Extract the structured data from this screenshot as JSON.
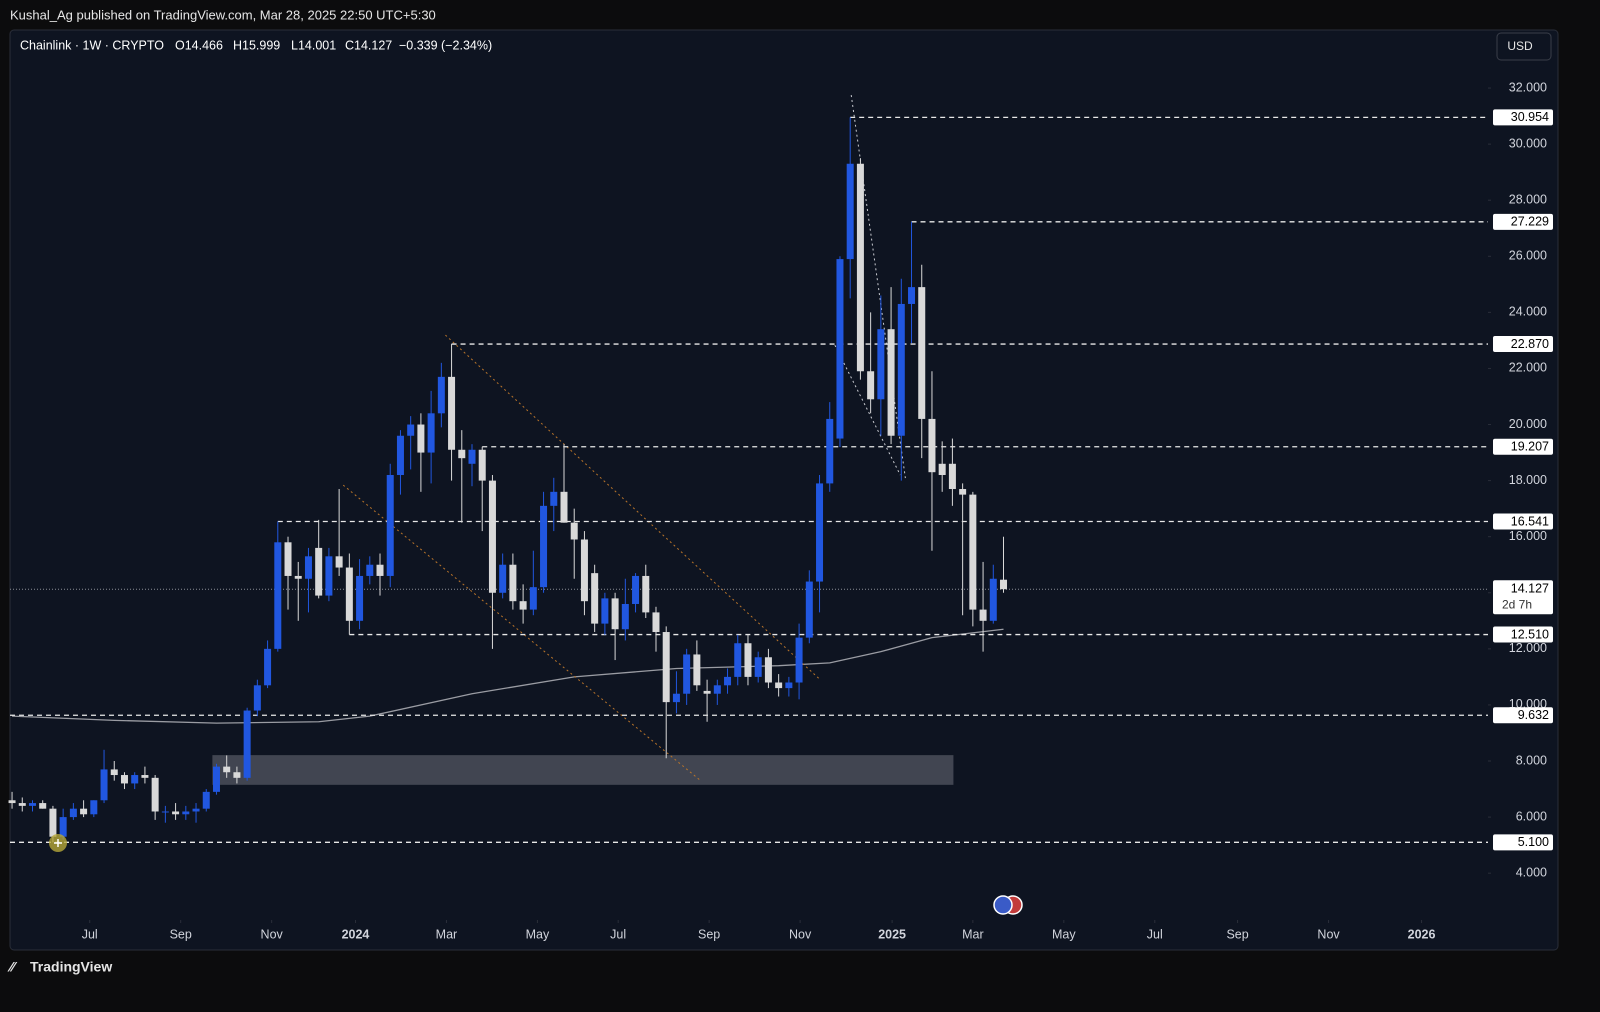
{
  "header": {
    "publisher": "Kushal_Ag published on TradingView.com, Mar 28, 2025 22:50 UTC+5:30",
    "symbol": "Chainlink · 1W · CRYPTO",
    "open": "O14.466",
    "high": "H15.999",
    "low": "L14.001",
    "close": "C14.127",
    "change": "−0.339 (−2.34%)",
    "currency": "USD",
    "footer": "TradingView"
  },
  "chart_data": {
    "type": "candlestick",
    "up_color": "#2157e0",
    "down_color": "#d9d9d9",
    "x": [
      0,
      1,
      2,
      3,
      4,
      5,
      6,
      7,
      8,
      9,
      10,
      11,
      12,
      13,
      14,
      15,
      16,
      17,
      18,
      19,
      20,
      21,
      22,
      23,
      24,
      25,
      26,
      27,
      28,
      29,
      30,
      31,
      32,
      33,
      34,
      35,
      36,
      37,
      38,
      39,
      40,
      41,
      42,
      43,
      44,
      45,
      46,
      47,
      48,
      49,
      50,
      51,
      52,
      53,
      54,
      55,
      56,
      57,
      58,
      59,
      60,
      61,
      62,
      63,
      64,
      65,
      66,
      67,
      68,
      69,
      70,
      71,
      72,
      73,
      74,
      75,
      76,
      77,
      78,
      79,
      80,
      81,
      82,
      83,
      84,
      85,
      86,
      87,
      88,
      89,
      90,
      91,
      92,
      93,
      94,
      95,
      96,
      97
    ],
    "open": [
      6.6,
      6.5,
      6.4,
      6.5,
      6.3,
      5.3,
      6.0,
      6.3,
      6.1,
      6.6,
      7.7,
      7.5,
      7.2,
      7.5,
      7.4,
      6.2,
      6.2,
      6.1,
      6.2,
      6.3,
      6.9,
      7.8,
      7.6,
      7.4,
      9.8,
      10.7,
      12.0,
      15.8,
      14.6,
      14.5,
      15.6,
      13.9,
      15.3,
      14.9,
      13.0,
      14.6,
      15.0,
      14.6,
      18.2,
      19.6,
      20.0,
      19.0,
      20.4,
      21.7,
      19.1,
      18.6,
      19.1,
      18.0,
      14.0,
      15.0,
      13.7,
      13.4,
      14.2,
      17.1,
      17.6,
      16.5,
      15.9,
      14.7,
      12.9,
      13.8,
      12.7,
      13.6,
      14.6,
      13.3,
      12.6,
      10.1,
      10.4,
      11.8,
      10.5,
      10.4,
      10.7,
      11.0,
      12.2,
      11.0,
      11.7,
      10.8,
      10.6,
      10.8,
      12.4,
      14.4,
      17.9,
      19.5,
      25.9,
      29.3,
      21.9,
      20.9,
      23.4,
      19.6,
      24.3,
      24.9,
      20.2,
      18.6,
      18.6,
      17.7,
      17.5,
      13.4,
      13.0,
      14.466
    ],
    "high": [
      6.9,
      6.7,
      6.6,
      6.6,
      6.4,
      6.3,
      6.5,
      6.6,
      6.6,
      8.4,
      8.0,
      7.6,
      7.6,
      7.8,
      7.5,
      6.4,
      6.5,
      6.4,
      6.5,
      7.0,
      7.9,
      8.2,
      7.8,
      9.9,
      10.9,
      12.3,
      16.541,
      16.0,
      15.1,
      15.6,
      16.6,
      15.6,
      17.7,
      15.4,
      15.2,
      15.3,
      15.4,
      18.6,
      19.8,
      20.3,
      20.4,
      21.2,
      22.2,
      22.87,
      19.8,
      19.3,
      19.207,
      18.2,
      15.4,
      15.4,
      14.3,
      15.5,
      17.6,
      18.1,
      19.3,
      17.0,
      16.2,
      15.0,
      14.0,
      14.0,
      14.5,
      14.7,
      15.0,
      13.5,
      12.8,
      11.2,
      12.0,
      12.3,
      10.9,
      10.9,
      11.3,
      12.5,
      12.5,
      11.9,
      12.0,
      11.1,
      11.0,
      12.9,
      14.8,
      18.2,
      20.8,
      26.0,
      30.954,
      29.5,
      24.0,
      24.6,
      24.9,
      25.2,
      27.229,
      25.7,
      21.9,
      19.4,
      19.5,
      17.9,
      17.6,
      15.1,
      15.0,
      15.999
    ],
    "low": [
      6.3,
      6.2,
      6.2,
      6.3,
      5.1,
      5.2,
      5.9,
      6.0,
      6.0,
      6.5,
      7.3,
      7.0,
      7.0,
      7.2,
      5.9,
      5.8,
      5.9,
      5.9,
      5.8,
      6.2,
      6.8,
      7.4,
      7.2,
      7.3,
      9.6,
      10.6,
      11.9,
      13.4,
      13.0,
      13.3,
      13.8,
      13.7,
      14.6,
      12.51,
      12.7,
      14.3,
      13.9,
      14.2,
      17.5,
      18.4,
      17.6,
      17.9,
      19.9,
      18.0,
      16.5,
      17.8,
      16.2,
      12.0,
      13.8,
      13.4,
      12.9,
      13.2,
      14.0,
      16.2,
      16.5,
      14.5,
      13.2,
      12.6,
      12.5,
      11.6,
      12.3,
      13.3,
      13.1,
      11.9,
      8.1,
      9.7,
      10.0,
      10.5,
      9.4,
      10.0,
      10.4,
      10.7,
      10.7,
      10.8,
      10.6,
      10.3,
      10.3,
      10.2,
      12.2,
      13.3,
      17.6,
      19.2,
      24.5,
      21.6,
      20.4,
      19.6,
      19.3,
      18.0,
      22.9,
      18.8,
      15.5,
      17.6,
      17.1,
      13.2,
      12.8,
      11.9,
      12.9,
      14.001
    ],
    "close": [
      6.5,
      6.4,
      6.5,
      6.3,
      5.3,
      6.0,
      6.3,
      6.1,
      6.6,
      7.7,
      7.5,
      7.2,
      7.5,
      7.4,
      6.2,
      6.2,
      6.1,
      6.2,
      6.3,
      6.9,
      7.8,
      7.6,
      7.4,
      9.8,
      10.7,
      12.0,
      15.8,
      14.6,
      14.5,
      15.3,
      13.9,
      15.3,
      14.9,
      13.0,
      14.6,
      15.0,
      14.6,
      18.2,
      19.6,
      20.0,
      19.0,
      20.4,
      21.7,
      19.1,
      18.8,
      19.1,
      18.0,
      14.0,
      15.0,
      13.7,
      13.4,
      14.2,
      17.1,
      17.6,
      16.5,
      15.9,
      13.7,
      12.9,
      13.8,
      12.7,
      13.6,
      14.6,
      13.3,
      12.6,
      10.1,
      10.4,
      11.8,
      10.7,
      10.4,
      10.7,
      11.0,
      12.2,
      11.0,
      11.7,
      10.8,
      10.6,
      10.8,
      12.4,
      14.4,
      17.9,
      20.2,
      25.9,
      29.3,
      21.9,
      20.9,
      23.4,
      19.6,
      24.3,
      24.9,
      20.2,
      18.3,
      18.2,
      17.7,
      17.5,
      13.4,
      13.0,
      14.5,
      14.127
    ],
    "xlim": [
      -0.2,
      144.4
    ],
    "xticks": [
      {
        "value": 7.6,
        "label": "Jul"
      },
      {
        "value": 16.5,
        "label": "Sep"
      },
      {
        "value": 25.4,
        "label": "Nov"
      },
      {
        "value": 33.6,
        "label": "2024"
      },
      {
        "value": 42.5,
        "label": "Mar"
      },
      {
        "value": 51.4,
        "label": "May"
      },
      {
        "value": 59.3,
        "label": "Jul"
      },
      {
        "value": 68.2,
        "label": "Sep"
      },
      {
        "value": 77.1,
        "label": "Nov"
      },
      {
        "value": 86.1,
        "label": "2025"
      },
      {
        "value": 94.0,
        "label": "Mar"
      },
      {
        "value": 102.9,
        "label": "May"
      },
      {
        "value": 111.8,
        "label": "Jul"
      },
      {
        "value": 119.9,
        "label": "Sep"
      },
      {
        "value": 128.8,
        "label": "Nov"
      },
      {
        "value": 137.9,
        "label": "2026"
      }
    ],
    "ylim": [
      2.33,
      34.07
    ],
    "yticks": [
      {
        "value": 4,
        "label": "4.000"
      },
      {
        "value": 6,
        "label": "6.000"
      },
      {
        "value": 8,
        "label": "8.000"
      },
      {
        "value": 10,
        "label": "10.000"
      },
      {
        "value": 12,
        "label": "12.000"
      },
      {
        "value": 14,
        "label": "14.000"
      },
      {
        "value": 16,
        "label": "16.000"
      },
      {
        "value": 18,
        "label": "18.000"
      },
      {
        "value": 20,
        "label": "20.000"
      },
      {
        "value": 22,
        "label": "22.000"
      },
      {
        "value": 24,
        "label": "24.000"
      },
      {
        "value": 26,
        "label": "26.000"
      },
      {
        "value": 28,
        "label": "28.000"
      },
      {
        "value": 30,
        "label": "30.000"
      },
      {
        "value": 32,
        "label": "32.000"
      }
    ],
    "levels": [
      {
        "value": 30.954,
        "label": "30.954",
        "start": 82
      },
      {
        "value": 27.229,
        "label": "27.229",
        "start": 88
      },
      {
        "value": 22.87,
        "label": "22.870",
        "start": 43
      },
      {
        "value": 19.207,
        "label": "19.207",
        "start": 46
      },
      {
        "value": 16.541,
        "label": "16.541",
        "start": 26
      },
      {
        "value": 12.51,
        "label": "12.510",
        "start": 33
      },
      {
        "value": 9.632,
        "label": "9.632",
        "start": -0.2
      },
      {
        "value": 5.1,
        "label": "5.100",
        "start": -0.2
      }
    ],
    "last_price": {
      "value": 14.127,
      "label": "14.127",
      "countdown": "2d 7h"
    },
    "ma": {
      "color": "#9a9ca3",
      "x": [
        0,
        10,
        20,
        30,
        35,
        45,
        55,
        65,
        75,
        80,
        85,
        90,
        97
      ],
      "values": [
        9.6,
        9.45,
        9.35,
        9.4,
        9.6,
        10.4,
        11.0,
        11.3,
        11.4,
        11.5,
        11.9,
        12.4,
        12.7
      ]
    },
    "trendlines": [
      {
        "color": "#b8742a",
        "x": [
          32.4,
          67.3
        ],
        "y": [
          17.84,
          7.32
        ]
      },
      {
        "color": "#b8742a",
        "x": [
          42.4,
          79.1
        ],
        "y": [
          23.19,
          10.89
        ]
      },
      {
        "color": "#c9cbd1",
        "x": [
          82.1,
          87.4
        ],
        "y": [
          31.75,
          18.09
        ]
      },
      {
        "color": "#c9cbd1",
        "x": [
          80.5,
          86.9
        ],
        "y": [
          22.83,
          18.2
        ]
      }
    ],
    "zone": {
      "color": "#4a4e59",
      "x": [
        19.6,
        92.1
      ],
      "y": [
        7.15,
        8.21
      ]
    }
  }
}
